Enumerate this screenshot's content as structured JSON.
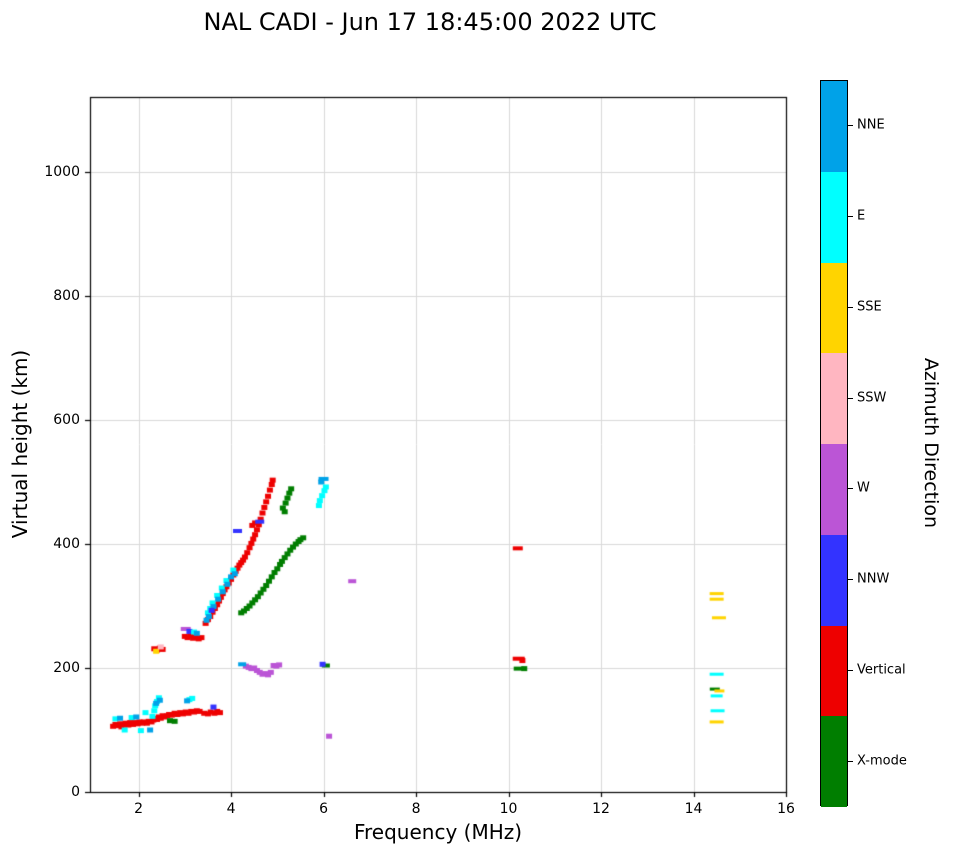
{
  "title": "NAL CADI - Jun 17 18:45:00 2022 UTC",
  "chart_data": {
    "type": "scatter",
    "title": "NAL CADI - Jun 17 18:45:00 2022 UTC",
    "xlabel": "Frequency (MHz)",
    "ylabel": "Virtual height (km)",
    "xlim": [
      0.95,
      16
    ],
    "ylim": [
      0,
      1121
    ],
    "x_ticks": [
      2,
      4,
      6,
      8,
      10,
      12,
      14,
      16
    ],
    "y_ticks": [
      0,
      200,
      400,
      600,
      800,
      1000
    ],
    "grid": true,
    "grid_color": "#d9d9d9",
    "legend_title": "Azimuth Direction",
    "legend_position": "right-colorbar",
    "categories": [
      {
        "key": "NNE",
        "color": "#00A2E8"
      },
      {
        "key": "E",
        "color": "#00FFFF"
      },
      {
        "key": "SSE",
        "color": "#FFD400"
      },
      {
        "key": "SSW",
        "color": "#FFB6C1"
      },
      {
        "key": "W",
        "color": "#BB55D6"
      },
      {
        "key": "NNW",
        "color": "#3333FF"
      },
      {
        "key": "Vertical",
        "color": "#EE0000"
      },
      {
        "key": "X-mode",
        "color": "#007E00"
      }
    ],
    "points": [
      [
        1.45,
        106,
        "Vertical"
      ],
      [
        1.5,
        109,
        "Vertical"
      ],
      [
        1.55,
        107,
        "Vertical"
      ],
      [
        1.6,
        110,
        "Vertical"
      ],
      [
        1.63,
        105,
        "Vertical"
      ],
      [
        1.68,
        108,
        "Vertical"
      ],
      [
        1.72,
        111,
        "Vertical"
      ],
      [
        1.78,
        108,
        "Vertical"
      ],
      [
        1.82,
        112,
        "Vertical"
      ],
      [
        1.88,
        109,
        "Vertical"
      ],
      [
        1.92,
        112,
        "Vertical"
      ],
      [
        1.98,
        110,
        "Vertical"
      ],
      [
        2.02,
        113,
        "Vertical"
      ],
      [
        2.08,
        111,
        "Vertical"
      ],
      [
        2.12,
        113,
        "Vertical"
      ],
      [
        2.18,
        111,
        "Vertical"
      ],
      [
        2.22,
        114,
        "Vertical"
      ],
      [
        2.28,
        113,
        "Vertical"
      ],
      [
        2.32,
        116,
        "Vertical"
      ],
      [
        2.36,
        119,
        "Vertical"
      ],
      [
        2.4,
        117,
        "Vertical"
      ],
      [
        2.44,
        121,
        "Vertical"
      ],
      [
        2.48,
        119,
        "Vertical"
      ],
      [
        2.52,
        123,
        "Vertical"
      ],
      [
        2.56,
        121,
        "Vertical"
      ],
      [
        2.62,
        123,
        "Vertical"
      ],
      [
        2.66,
        125,
        "Vertical"
      ],
      [
        2.72,
        124,
        "Vertical"
      ],
      [
        2.78,
        127,
        "Vertical"
      ],
      [
        2.84,
        125,
        "Vertical"
      ],
      [
        2.9,
        128,
        "Vertical"
      ],
      [
        2.96,
        126,
        "Vertical"
      ],
      [
        3.02,
        129,
        "Vertical"
      ],
      [
        3.08,
        127,
        "Vertical"
      ],
      [
        3.14,
        130,
        "Vertical"
      ],
      [
        3.2,
        129,
        "Vertical"
      ],
      [
        3.26,
        131,
        "Vertical"
      ],
      [
        3.32,
        130,
        "Vertical"
      ],
      [
        3.42,
        127,
        "Vertical"
      ],
      [
        3.5,
        126,
        "Vertical"
      ],
      [
        3.56,
        129,
        "Vertical"
      ],
      [
        3.64,
        127,
        "Vertical"
      ],
      [
        3.7,
        130,
        "Vertical"
      ],
      [
        3.76,
        128,
        "Vertical"
      ],
      [
        1.5,
        118,
        "E"
      ],
      [
        1.7,
        100,
        "E"
      ],
      [
        1.85,
        120,
        "E"
      ],
      [
        2.05,
        99,
        "E"
      ],
      [
        2.3,
        122,
        "E"
      ],
      [
        2.15,
        128,
        "E"
      ],
      [
        2.34,
        131,
        "E"
      ],
      [
        2.36,
        139,
        "E"
      ],
      [
        2.4,
        146,
        "E"
      ],
      [
        2.44,
        152,
        "E"
      ],
      [
        3.1,
        149,
        "E"
      ],
      [
        3.16,
        151,
        "E"
      ],
      [
        1.6,
        119,
        "NNE"
      ],
      [
        1.95,
        121,
        "NNE"
      ],
      [
        2.25,
        100,
        "NNE"
      ],
      [
        2.38,
        143,
        "NNE"
      ],
      [
        2.46,
        148,
        "NNE"
      ],
      [
        3.05,
        147,
        "NNE"
      ],
      [
        2.68,
        115,
        "X-mode"
      ],
      [
        2.78,
        114,
        "X-mode"
      ],
      [
        3.62,
        137,
        "NNW"
      ],
      [
        2.34,
        231,
        "Vertical"
      ],
      [
        2.4,
        229,
        "Vertical"
      ],
      [
        2.46,
        232,
        "Vertical"
      ],
      [
        2.52,
        230,
        "Vertical"
      ],
      [
        2.38,
        227,
        "SSE"
      ],
      [
        2.48,
        234,
        "SSW"
      ],
      [
        3.0,
        251,
        "Vertical"
      ],
      [
        3.06,
        249,
        "Vertical"
      ],
      [
        3.12,
        252,
        "Vertical"
      ],
      [
        3.18,
        248,
        "Vertical"
      ],
      [
        3.24,
        250,
        "Vertical"
      ],
      [
        3.3,
        247,
        "Vertical"
      ],
      [
        3.36,
        249,
        "Vertical"
      ],
      [
        3.02,
        263,
        "W",
        10,
        4
      ],
      [
        3.1,
        259,
        "NNW"
      ],
      [
        3.2,
        258,
        "E"
      ],
      [
        3.26,
        256,
        "NNE"
      ],
      [
        3.45,
        272,
        "Vertical"
      ],
      [
        3.5,
        278,
        "Vertical"
      ],
      [
        3.55,
        283,
        "Vertical"
      ],
      [
        3.6,
        290,
        "Vertical"
      ],
      [
        3.65,
        296,
        "Vertical"
      ],
      [
        3.7,
        302,
        "Vertical"
      ],
      [
        3.74,
        308,
        "Vertical"
      ],
      [
        3.78,
        314,
        "Vertical"
      ],
      [
        3.82,
        320,
        "Vertical"
      ],
      [
        3.86,
        326,
        "Vertical"
      ],
      [
        3.9,
        331,
        "Vertical"
      ],
      [
        3.95,
        337,
        "Vertical"
      ],
      [
        4.0,
        343,
        "Vertical"
      ],
      [
        4.05,
        350,
        "Vertical"
      ],
      [
        4.1,
        356,
        "Vertical"
      ],
      [
        4.14,
        361,
        "Vertical"
      ],
      [
        4.18,
        366,
        "Vertical"
      ],
      [
        4.22,
        370,
        "Vertical"
      ],
      [
        4.26,
        374,
        "Vertical"
      ],
      [
        4.3,
        379,
        "Vertical"
      ],
      [
        4.35,
        386,
        "Vertical"
      ],
      [
        4.4,
        394,
        "Vertical"
      ],
      [
        4.44,
        401,
        "Vertical"
      ],
      [
        4.48,
        408,
        "Vertical"
      ],
      [
        4.52,
        415,
        "Vertical"
      ],
      [
        4.56,
        423,
        "Vertical"
      ],
      [
        4.6,
        431,
        "Vertical"
      ],
      [
        4.64,
        440,
        "Vertical"
      ],
      [
        4.68,
        450,
        "Vertical"
      ],
      [
        4.72,
        459,
        "Vertical"
      ],
      [
        4.76,
        468,
        "Vertical"
      ],
      [
        4.8,
        477,
        "Vertical"
      ],
      [
        4.84,
        487,
        "Vertical"
      ],
      [
        4.88,
        496,
        "Vertical"
      ],
      [
        4.9,
        503,
        "Vertical"
      ],
      [
        4.46,
        430,
        "Vertical"
      ],
      [
        4.52,
        434,
        "Vertical"
      ],
      [
        3.5,
        289,
        "E"
      ],
      [
        3.55,
        296,
        "E"
      ],
      [
        3.6,
        305,
        "E"
      ],
      [
        3.7,
        317,
        "E"
      ],
      [
        3.8,
        329,
        "E"
      ],
      [
        3.9,
        341,
        "E"
      ],
      [
        4.05,
        358,
        "E"
      ],
      [
        3.47,
        277,
        "NNE"
      ],
      [
        3.52,
        283,
        "NNE"
      ],
      [
        3.62,
        299,
        "NNE"
      ],
      [
        3.72,
        311,
        "NNE"
      ],
      [
        3.82,
        323,
        "NNE"
      ],
      [
        3.92,
        335,
        "NNE"
      ],
      [
        4.0,
        347,
        "NNE"
      ],
      [
        4.08,
        352,
        "NNE"
      ],
      [
        3.58,
        293,
        "NNW"
      ],
      [
        4.14,
        421,
        "NNW",
        9,
        4
      ],
      [
        4.62,
        436,
        "NNW",
        9,
        4
      ],
      [
        4.22,
        289,
        "X-mode"
      ],
      [
        4.28,
        292,
        "X-mode"
      ],
      [
        4.34,
        296,
        "X-mode"
      ],
      [
        4.4,
        300,
        "X-mode"
      ],
      [
        4.46,
        305,
        "X-mode"
      ],
      [
        4.52,
        310,
        "X-mode"
      ],
      [
        4.58,
        315,
        "X-mode"
      ],
      [
        4.64,
        321,
        "X-mode"
      ],
      [
        4.7,
        327,
        "X-mode"
      ],
      [
        4.76,
        333,
        "X-mode"
      ],
      [
        4.82,
        340,
        "X-mode"
      ],
      [
        4.88,
        347,
        "X-mode"
      ],
      [
        4.94,
        354,
        "X-mode"
      ],
      [
        5.0,
        360,
        "X-mode"
      ],
      [
        5.06,
        367,
        "X-mode"
      ],
      [
        5.1,
        372,
        "X-mode"
      ],
      [
        5.16,
        378,
        "X-mode"
      ],
      [
        5.22,
        384,
        "X-mode"
      ],
      [
        5.28,
        390,
        "X-mode"
      ],
      [
        5.34,
        395,
        "X-mode"
      ],
      [
        5.4,
        400,
        "X-mode"
      ],
      [
        5.46,
        404,
        "X-mode"
      ],
      [
        5.5,
        407,
        "X-mode"
      ],
      [
        5.56,
        410,
        "X-mode"
      ],
      [
        5.16,
        452,
        "X-mode"
      ],
      [
        5.12,
        458,
        "X-mode"
      ],
      [
        5.18,
        466,
        "X-mode"
      ],
      [
        5.22,
        474,
        "X-mode"
      ],
      [
        5.26,
        482,
        "X-mode"
      ],
      [
        5.3,
        489,
        "X-mode"
      ],
      [
        6.0,
        505,
        "NNE",
        10,
        4
      ],
      [
        5.95,
        500,
        "NNE"
      ],
      [
        5.9,
        462,
        "E"
      ],
      [
        5.92,
        470,
        "E"
      ],
      [
        5.97,
        478,
        "E"
      ],
      [
        6.02,
        486,
        "E"
      ],
      [
        6.05,
        492,
        "E"
      ],
      [
        4.32,
        203,
        "W"
      ],
      [
        4.38,
        201,
        "W"
      ],
      [
        4.44,
        199,
        "W"
      ],
      [
        4.5,
        200,
        "W"
      ],
      [
        4.56,
        196,
        "W"
      ],
      [
        4.62,
        193,
        "W"
      ],
      [
        4.68,
        190,
        "W"
      ],
      [
        4.74,
        191,
        "W"
      ],
      [
        4.8,
        189,
        "W"
      ],
      [
        4.86,
        193,
        "W"
      ],
      [
        4.92,
        204,
        "W"
      ],
      [
        4.98,
        203,
        "W"
      ],
      [
        5.04,
        205,
        "W"
      ],
      [
        4.24,
        206,
        "NNE",
        8,
        4
      ],
      [
        6.12,
        90,
        "W"
      ],
      [
        6.62,
        340,
        "W",
        8,
        4
      ],
      [
        6.05,
        204,
        "X-mode",
        8,
        4
      ],
      [
        5.98,
        206,
        "NNW"
      ],
      [
        10.2,
        393,
        "Vertical",
        10,
        4
      ],
      [
        10.22,
        215,
        "Vertical",
        12,
        4
      ],
      [
        10.3,
        212,
        "Vertical"
      ],
      [
        10.22,
        199,
        "X-mode",
        10,
        4
      ],
      [
        10.34,
        199,
        "X-mode"
      ],
      [
        14.5,
        320,
        "SSE",
        14,
        3
      ],
      [
        14.5,
        311,
        "SSE",
        14,
        3
      ],
      [
        14.55,
        281,
        "SSE",
        14,
        3
      ],
      [
        14.5,
        190,
        "E",
        14,
        3
      ],
      [
        14.46,
        166,
        "X-mode",
        10,
        3
      ],
      [
        14.56,
        163,
        "SSE",
        10,
        3
      ],
      [
        14.5,
        155,
        "E",
        12,
        3
      ],
      [
        14.52,
        131,
        "E",
        14,
        3
      ],
      [
        14.5,
        113,
        "SSE",
        14,
        3
      ]
    ]
  }
}
